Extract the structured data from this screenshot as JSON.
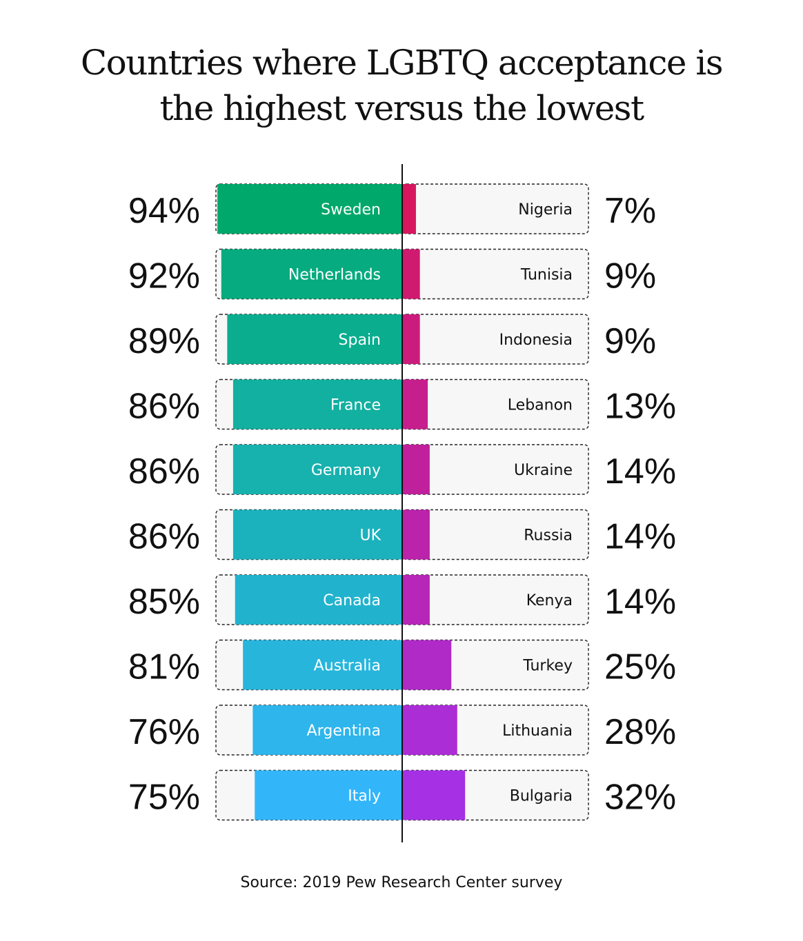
{
  "chart_data": {
    "type": "bar",
    "title_lines": [
      "Countries where LGBTQ acceptance is",
      "the highest versus the lowest"
    ],
    "source": "Source: 2019 Pew Research Center survey",
    "unit": "%",
    "xlim": [
      0,
      100
    ],
    "highest": {
      "categories": [
        "Sweden",
        "Netherlands",
        "Spain",
        "France",
        "Germany",
        "UK",
        "Canada",
        "Australia",
        "Argentina",
        "Italy"
      ],
      "values": [
        94,
        92,
        89,
        86,
        86,
        86,
        85,
        81,
        76,
        75
      ],
      "labels": [
        "94%",
        "92%",
        "89%",
        "86%",
        "86%",
        "86%",
        "85%",
        "81%",
        "76%",
        "75%"
      ],
      "colors": [
        "#00A86B",
        "#06AB7F",
        "#0BAD8F",
        "#12B0A0",
        "#17B1AE",
        "#1BB2BD",
        "#21B3CD",
        "#27B5DC",
        "#2DB5EC",
        "#33B5FA"
      ]
    },
    "lowest": {
      "categories": [
        "Nigeria",
        "Tunisia",
        "Indonesia",
        "Lebanon",
        "Ukraine",
        "Russia",
        "Kenya",
        "Turkey",
        "Lithuania",
        "Bulgaria"
      ],
      "values": [
        7,
        9,
        9,
        13,
        14,
        14,
        14,
        25,
        28,
        32
      ],
      "labels": [
        "7%",
        "9%",
        "9%",
        "13%",
        "14%",
        "14%",
        "14%",
        "25%",
        "28%",
        "32%"
      ],
      "colors": [
        "#D6175F",
        "#D01A70",
        "#CB1C7E",
        "#C61F8D",
        "#C0209B",
        "#BB23AA",
        "#B626B8",
        "#B02AC7",
        "#AB2DD6",
        "#A630E4"
      ]
    }
  }
}
